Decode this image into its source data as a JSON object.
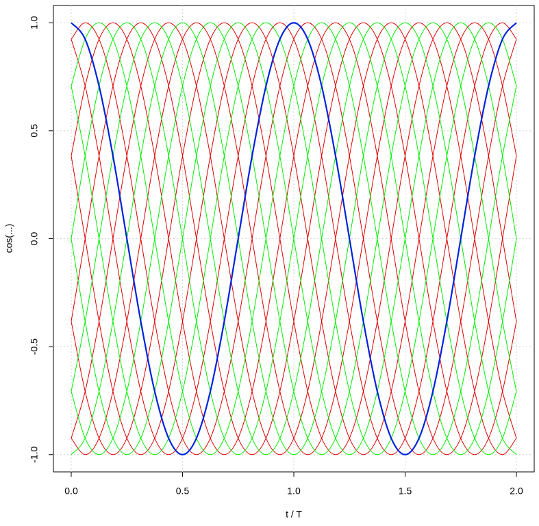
{
  "chart_data": {
    "type": "line",
    "xlabel": "t / T",
    "ylabel": "cos(...)",
    "x": [
      0,
      0.0625,
      0.125,
      0.1875,
      0.25,
      0.3125,
      0.375,
      0.4375,
      0.5,
      0.5625,
      0.625,
      0.6875,
      0.75,
      0.8125,
      0.875,
      0.9375,
      1,
      1.0625,
      1.125,
      1.1875,
      1.25,
      1.3125,
      1.375,
      1.4375,
      1.5,
      1.5625,
      1.625,
      1.6875,
      1.75,
      1.8125,
      1.875,
      1.9375,
      2
    ],
    "xlim": [
      -0.08,
      2.08
    ],
    "ylim": [
      -1.08,
      1.08
    ],
    "xticks": [
      {
        "value": 0,
        "label": "0.0"
      },
      {
        "value": 0.5,
        "label": "0.5"
      },
      {
        "value": 1,
        "label": "1.0"
      },
      {
        "value": 1.5,
        "label": "1.5"
      },
      {
        "value": 2,
        "label": "2.0"
      }
    ],
    "yticks": [
      {
        "value": -1,
        "label": "-1.0"
      },
      {
        "value": -0.5,
        "label": "-0.5"
      },
      {
        "value": 0,
        "label": "0.0"
      },
      {
        "value": 0.5,
        "label": "0.5"
      },
      {
        "value": 1,
        "label": "1.0"
      }
    ],
    "grid": true,
    "series": [
      {
        "color": "#dd0000",
        "values": [
          0.924,
          1,
          0.924,
          0.707,
          0.383,
          0,
          -0.383,
          -0.707,
          -0.924,
          -1,
          -0.924,
          -0.707,
          -0.383,
          0,
          0.383,
          0.707,
          0.924,
          1,
          0.924,
          0.707,
          0.383,
          0,
          -0.383,
          -0.707,
          -0.924,
          -1,
          -0.924,
          -0.707,
          -0.383,
          0,
          0.383,
          0.707,
          0.924
        ]
      },
      {
        "color": "#dd0000",
        "values": [
          0.383,
          0.707,
          0.924,
          1,
          0.924,
          0.707,
          0.383,
          0,
          -0.383,
          -0.707,
          -0.924,
          -1,
          -0.924,
          -0.707,
          -0.383,
          0,
          0.383,
          0.707,
          0.924,
          1,
          0.924,
          0.707,
          0.383,
          0,
          -0.383,
          -0.707,
          -0.924,
          -1,
          -0.924,
          -0.707,
          -0.383,
          0,
          0.383
        ]
      },
      {
        "color": "#dd0000",
        "values": [
          -0.383,
          0,
          0.383,
          0.707,
          0.924,
          1,
          0.924,
          0.707,
          0.383,
          0,
          -0.383,
          -0.707,
          -0.924,
          -1,
          -0.924,
          -0.707,
          -0.383,
          0,
          0.383,
          0.707,
          0.924,
          1,
          0.924,
          0.707,
          0.383,
          0,
          -0.383,
          -0.707,
          -0.924,
          -1,
          -0.924,
          -0.707,
          -0.383
        ]
      },
      {
        "color": "#dd0000",
        "values": [
          -0.924,
          -0.707,
          -0.383,
          0,
          0.383,
          0.707,
          0.924,
          1,
          0.924,
          0.707,
          0.383,
          0,
          -0.383,
          -0.707,
          -0.924,
          -1,
          -0.924,
          -0.707,
          -0.383,
          0,
          0.383,
          0.707,
          0.924,
          1,
          0.924,
          0.707,
          0.383,
          0,
          -0.383,
          -0.707,
          -0.924,
          -1,
          -0.924
        ]
      },
      {
        "color": "#dd0000",
        "values": [
          -0.924,
          -1,
          -0.924,
          -0.707,
          -0.383,
          0,
          0.383,
          0.707,
          0.924,
          1,
          0.924,
          0.707,
          0.383,
          0,
          -0.383,
          -0.707,
          -0.924,
          -1,
          -0.924,
          -0.707,
          -0.383,
          0,
          0.383,
          0.707,
          0.924,
          1,
          0.924,
          0.707,
          0.383,
          0,
          -0.383,
          -0.707,
          -0.924
        ]
      },
      {
        "color": "#dd0000",
        "values": [
          -0.383,
          -0.707,
          -0.924,
          -1,
          -0.924,
          -0.707,
          -0.383,
          0,
          0.383,
          0.707,
          0.924,
          1,
          0.924,
          0.707,
          0.383,
          0,
          -0.383,
          -0.707,
          -0.924,
          -1,
          -0.924,
          -0.707,
          -0.383,
          0,
          0.383,
          0.707,
          0.924,
          1,
          0.924,
          0.707,
          0.383,
          0,
          -0.383
        ]
      },
      {
        "color": "#dd0000",
        "values": [
          0.383,
          0,
          -0.383,
          -0.707,
          -0.924,
          -1,
          -0.924,
          -0.707,
          -0.383,
          0,
          0.383,
          0.707,
          0.924,
          1,
          0.924,
          0.707,
          0.383,
          0,
          -0.383,
          -0.707,
          -0.924,
          -1,
          -0.924,
          -0.707,
          -0.383,
          0,
          0.383,
          0.707,
          0.924,
          1,
          0.924,
          0.707,
          0.383
        ]
      },
      {
        "color": "#dd0000",
        "values": [
          0.924,
          0.707,
          0.383,
          0,
          -0.383,
          -0.707,
          -0.924,
          -1,
          -0.924,
          -0.707,
          -0.383,
          0,
          0.383,
          0.707,
          0.924,
          1,
          0.924,
          0.707,
          0.383,
          0,
          -0.383,
          -0.707,
          -0.924,
          -1,
          -0.924,
          -0.707,
          -0.383,
          0,
          0.383,
          0.707,
          0.924,
          1,
          0.924
        ]
      },
      {
        "color": "#00ee00",
        "values": [
          0.707,
          0.924,
          1,
          0.924,
          0.707,
          0.383,
          0,
          -0.383,
          -0.707,
          -0.924,
          -1,
          -0.924,
          -0.707,
          -0.383,
          0,
          0.383,
          0.707,
          0.924,
          1,
          0.924,
          0.707,
          0.383,
          0,
          -0.383,
          -0.707,
          -0.924,
          -1,
          -0.924,
          -0.707,
          -0.383,
          0,
          0.383,
          0.707
        ]
      },
      {
        "color": "#00ee00",
        "values": [
          0,
          0.383,
          0.707,
          0.924,
          1,
          0.924,
          0.707,
          0.383,
          0,
          -0.383,
          -0.707,
          -0.924,
          -1,
          -0.924,
          -0.707,
          -0.383,
          0,
          0.383,
          0.707,
          0.924,
          1,
          0.924,
          0.707,
          0.383,
          0,
          -0.383,
          -0.707,
          -0.924,
          -1,
          -0.924,
          -0.707,
          -0.383,
          0
        ]
      },
      {
        "color": "#00ee00",
        "values": [
          -0.707,
          -0.383,
          0,
          0.383,
          0.707,
          0.924,
          1,
          0.924,
          0.707,
          0.383,
          0,
          -0.383,
          -0.707,
          -0.924,
          -1,
          -0.924,
          -0.707,
          -0.383,
          0,
          0.383,
          0.707,
          0.924,
          1,
          0.924,
          0.707,
          0.383,
          0,
          -0.383,
          -0.707,
          -0.924,
          -1,
          -0.924,
          -0.707
        ]
      },
      {
        "color": "#00ee00",
        "values": [
          -1,
          -0.924,
          -0.707,
          -0.383,
          0,
          0.383,
          0.707,
          0.924,
          1,
          0.924,
          0.707,
          0.383,
          0,
          -0.383,
          -0.707,
          -0.924,
          -1,
          -0.924,
          -0.707,
          -0.383,
          0,
          0.383,
          0.707,
          0.924,
          1,
          0.924,
          0.707,
          0.383,
          0,
          -0.383,
          -0.707,
          -0.924,
          -1
        ]
      },
      {
        "color": "#00ee00",
        "values": [
          -0.707,
          -0.924,
          -1,
          -0.924,
          -0.707,
          -0.383,
          0,
          0.383,
          0.707,
          0.924,
          1,
          0.924,
          0.707,
          0.383,
          0,
          -0.383,
          -0.707,
          -0.924,
          -1,
          -0.924,
          -0.707,
          -0.383,
          0,
          0.383,
          0.707,
          0.924,
          1,
          0.924,
          0.707,
          0.383,
          0,
          -0.383,
          -0.707
        ]
      },
      {
        "color": "#00ee00",
        "values": [
          0,
          -0.383,
          -0.707,
          -0.924,
          -1,
          -0.924,
          -0.707,
          -0.383,
          0,
          0.383,
          0.707,
          0.924,
          1,
          0.924,
          0.707,
          0.383,
          0,
          -0.383,
          -0.707,
          -0.924,
          -1,
          -0.924,
          -0.707,
          -0.383,
          0,
          0.383,
          0.707,
          0.924,
          1,
          0.924,
          0.707,
          0.383,
          0
        ]
      },
      {
        "color": "#00ee00",
        "values": [
          0.707,
          0.383,
          0,
          -0.383,
          -0.707,
          -0.924,
          -1,
          -0.924,
          -0.707,
          -0.383,
          0,
          0.383,
          0.707,
          0.924,
          1,
          0.924,
          0.707,
          0.383,
          0,
          -0.383,
          -0.707,
          -0.924,
          -1,
          -0.924,
          -0.707,
          -0.383,
          0,
          0.383,
          0.707,
          0.924,
          1,
          0.924,
          0.707
        ]
      },
      {
        "color": "#0022dd",
        "width": 2.2,
        "values": [
          1,
          0.924,
          0.707,
          0.383,
          0,
          -0.383,
          -0.707,
          -0.924,
          -1,
          -0.924,
          -0.707,
          -0.383,
          0,
          0.383,
          0.707,
          0.924,
          1,
          0.924,
          0.707,
          0.383,
          0,
          -0.383,
          -0.707,
          -0.924,
          -1,
          -0.924,
          -0.707,
          -0.383,
          0,
          0.383,
          0.707,
          0.924,
          1
        ]
      }
    ]
  }
}
